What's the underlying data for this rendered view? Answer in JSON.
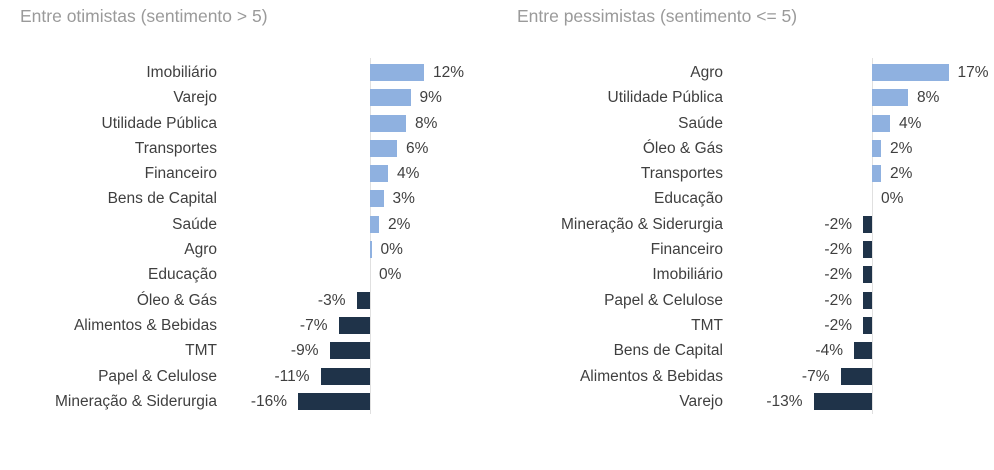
{
  "colors": {
    "positive_bar": "#8FB1E0",
    "negative_bar": "#1F3349",
    "axis_line": "#e0e0e0",
    "title_text": "#9a9a9a",
    "label_text": "#3f3f3f"
  },
  "chart_data": [
    {
      "type": "bar",
      "orientation": "horizontal",
      "title": "Entre otimistas (sentimento > 5)",
      "unit": "percent",
      "grid": false,
      "xlim": [
        -16,
        12
      ],
      "categories": [
        "Imobiliário",
        "Varejo",
        "Utilidade Pública",
        "Transportes",
        "Financeiro",
        "Bens de Capital",
        "Saúde",
        "Agro",
        "Educação",
        "Óleo & Gás",
        "Alimentos & Bebidas",
        "TMT",
        "Papel & Celulose",
        "Mineração & Siderurgia"
      ],
      "values": [
        12,
        9,
        8,
        6,
        4,
        3,
        2,
        0,
        0,
        -3,
        -7,
        -9,
        -11,
        -16
      ],
      "labels": [
        "12%",
        "9%",
        "8%",
        "6%",
        "4%",
        "3%",
        "2%",
        "0%",
        "0%",
        "-3%",
        "-7%",
        "-9%",
        "-11%",
        "-16%"
      ],
      "slivers": [
        false,
        false,
        false,
        false,
        false,
        false,
        false,
        true,
        false,
        false,
        false,
        false,
        false,
        false
      ]
    },
    {
      "type": "bar",
      "orientation": "horizontal",
      "title": "Entre pessimistas (sentimento <= 5)",
      "unit": "percent",
      "grid": false,
      "xlim": [
        -13,
        17
      ],
      "categories": [
        "Agro",
        "Utilidade Pública",
        "Saúde",
        "Óleo & Gás",
        "Transportes",
        "Educação",
        "Mineração & Siderurgia",
        "Financeiro",
        "Imobiliário",
        "Papel & Celulose",
        "TMT",
        "Bens de Capital",
        "Alimentos & Bebidas",
        "Varejo"
      ],
      "values": [
        17,
        8,
        4,
        2,
        2,
        0,
        -2,
        -2,
        -2,
        -2,
        -2,
        -4,
        -7,
        -13
      ],
      "labels": [
        "17%",
        "8%",
        "4%",
        "2%",
        "2%",
        "0%",
        "-2%",
        "-2%",
        "-2%",
        "-2%",
        "-2%",
        "-4%",
        "-7%",
        "-13%"
      ],
      "slivers": [
        false,
        false,
        false,
        false,
        false,
        false,
        false,
        false,
        false,
        false,
        false,
        false,
        false,
        false
      ]
    }
  ]
}
